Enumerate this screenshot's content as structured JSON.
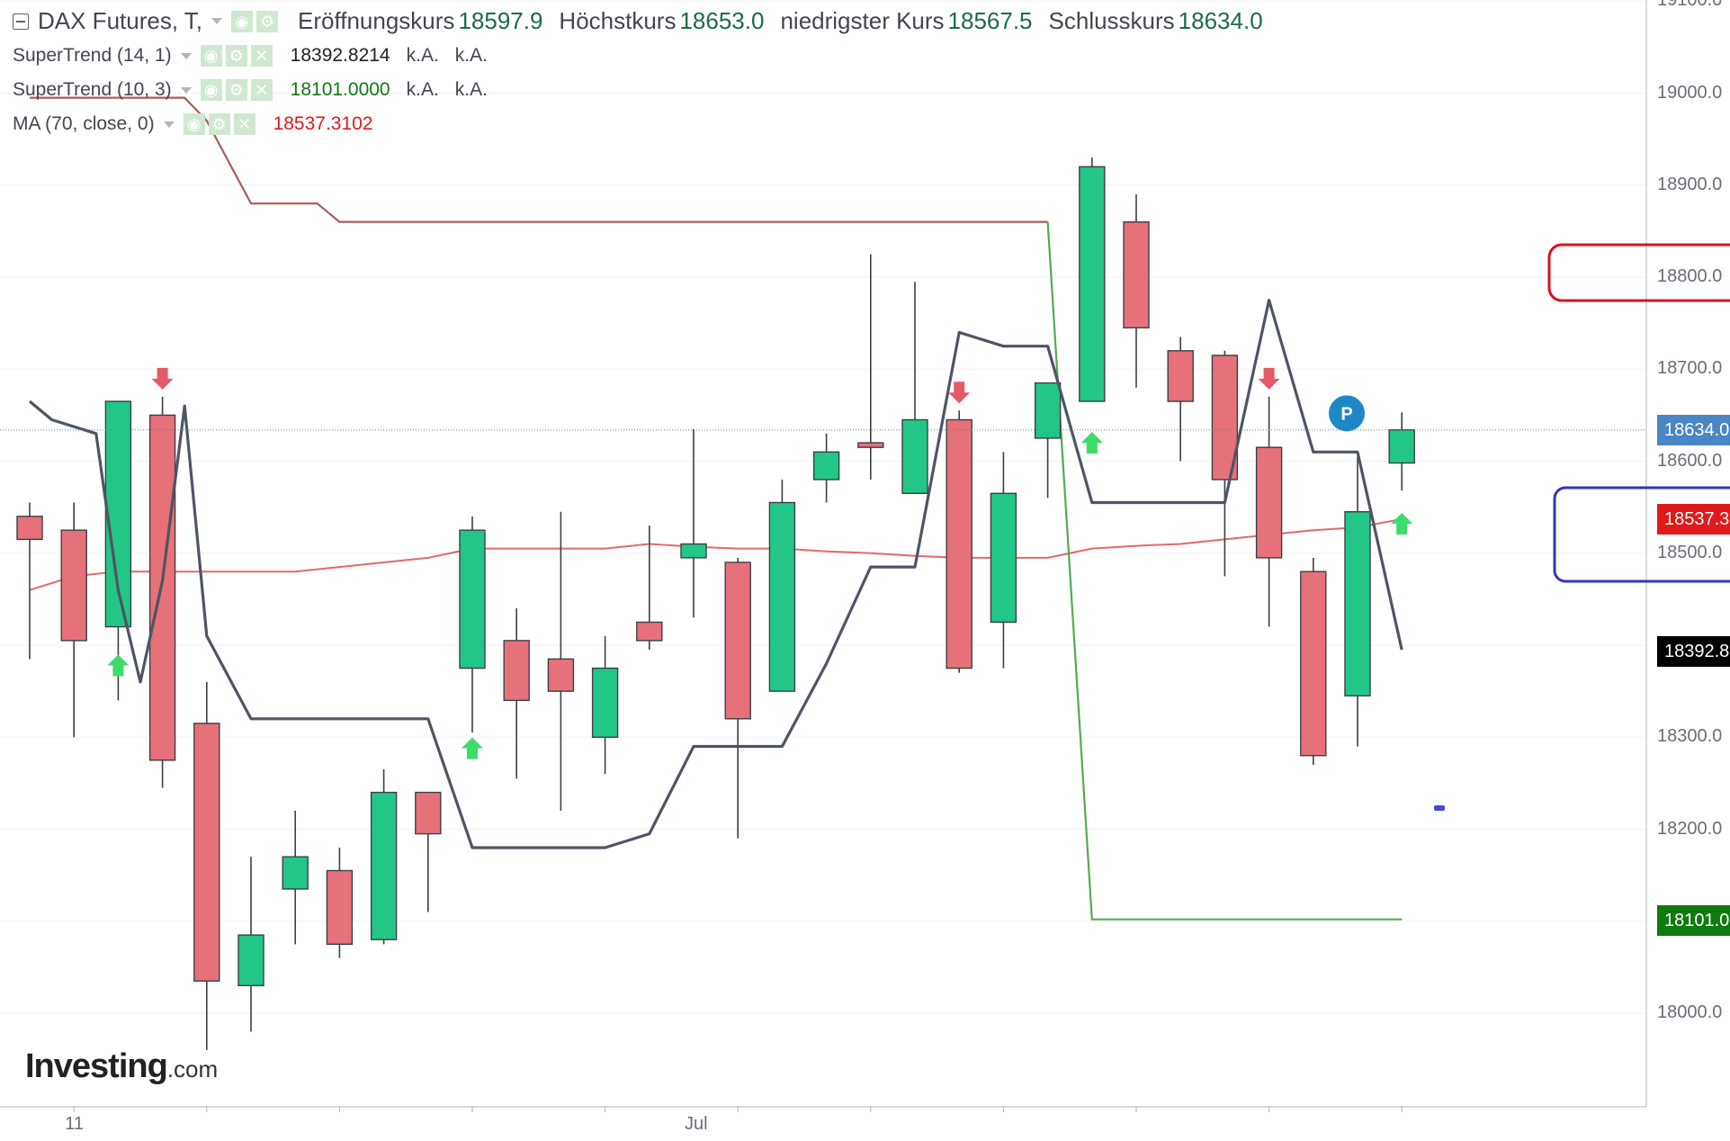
{
  "legend": {
    "main": {
      "symbol": "DAX Futures, T,",
      "open_label": "Eröffnungskurs",
      "open_value": "18597.9",
      "high_label": "Höchstkurs",
      "high_value": "18653.0",
      "low_label": "niedrigster Kurs",
      "low_value": "18567.5",
      "close_label": "Schlusskurs",
      "close_value": "18634.0"
    },
    "indicators": [
      {
        "name": "SuperTrend (14, 1)",
        "value": "18392.8214",
        "na1": "k.A.",
        "na2": "k.A."
      },
      {
        "name": "SuperTrend (10, 3)",
        "value": "18101.0000",
        "na1": "k.A.",
        "na2": "k.A."
      },
      {
        "name": "MA (70, close, 0)",
        "value": "18537.3102"
      }
    ]
  },
  "watermark": {
    "brand": "Investing",
    "suffix": ".com"
  },
  "price_tags": {
    "last": {
      "text": "18634.0",
      "color": "#4a86c5"
    },
    "ma": {
      "text": "18537.3",
      "color": "#e0191b"
    },
    "st1": {
      "text": "18392.8",
      "color": "#000000"
    },
    "st2": {
      "text": "18101.0",
      "color": "#117a11"
    }
  },
  "marker_p": "P",
  "colors": {
    "up": "#22c687",
    "down": "#e6717a",
    "st1_line": "#4e5563",
    "st2_line": "#57a857",
    "ma_line": "#e06a6a",
    "upper_line": "#a85b5b",
    "red_box": "#d81020",
    "blue_box": "#3535b8",
    "marker_p": "#1e88c7"
  },
  "chart_data": {
    "type": "candlestick",
    "ylim": [
      17900,
      19110
    ],
    "yticks": [
      18000,
      18100,
      18200,
      18300,
      18400,
      18500,
      18600,
      18700,
      18800,
      18900,
      19000,
      19100
    ],
    "ytick_labels": [
      "18000.0",
      "18100.0",
      "18200.0",
      "18300.0",
      "18400.0",
      "18500.0",
      "18600.0",
      "18700.0",
      "18800.0",
      "18900.0",
      "19000.0",
      "19100.0"
    ],
    "xtick_labels": [
      {
        "index": 1,
        "label": "11"
      },
      {
        "index": 15,
        "label": "Jul"
      }
    ],
    "ohlc": [
      [
        18540,
        18555,
        18385,
        18515
      ],
      [
        18525,
        18555,
        18300,
        18405
      ],
      [
        18420,
        18665,
        18340,
        18665
      ],
      [
        18650,
        18670,
        18245,
        18275
      ],
      [
        18315,
        18360,
        17960,
        18035
      ],
      [
        18030,
        18170,
        17980,
        18085
      ],
      [
        18135,
        18220,
        18075,
        18170
      ],
      [
        18155,
        18180,
        18060,
        18075
      ],
      [
        18080,
        18265,
        18075,
        18240
      ],
      [
        18240,
        18240,
        18110,
        18195
      ],
      [
        18375,
        18540,
        18305,
        18525
      ],
      [
        18405,
        18440,
        18255,
        18340
      ],
      [
        18385,
        18545,
        18220,
        18350
      ],
      [
        18300,
        18410,
        18260,
        18375
      ],
      [
        18425,
        18530,
        18395,
        18405
      ],
      [
        18495,
        18635,
        18430,
        18510
      ],
      [
        18490,
        18495,
        18190,
        18320
      ],
      [
        18350,
        18580,
        18350,
        18555
      ],
      [
        18580,
        18630,
        18555,
        18610
      ],
      [
        18620,
        18825,
        18580,
        18615
      ],
      [
        18565,
        18795,
        18565,
        18645
      ],
      [
        18645,
        18655,
        18370,
        18375
      ],
      [
        18425,
        18610,
        18375,
        18565
      ],
      [
        18625,
        18685,
        18560,
        18685
      ],
      [
        18665,
        18930,
        18665,
        18920
      ],
      [
        18860,
        18890,
        18680,
        18745
      ],
      [
        18720,
        18735,
        18600,
        18665
      ],
      [
        18715,
        18720,
        18475,
        18580
      ],
      [
        18615,
        18670,
        18420,
        18495
      ],
      [
        18480,
        18495,
        18270,
        18280
      ],
      [
        18345,
        18605,
        18290,
        18545
      ],
      [
        18598,
        18653,
        18568,
        18634
      ]
    ],
    "supertrend_14_1": [
      [
        0,
        18665
      ],
      [
        0.5,
        18645
      ],
      [
        1.5,
        18630
      ],
      [
        2,
        18460
      ],
      [
        2.5,
        18360
      ],
      [
        3,
        18470
      ],
      [
        3.5,
        18660
      ],
      [
        4,
        18410
      ],
      [
        5,
        18320
      ],
      [
        9,
        18320
      ],
      [
        10,
        18180
      ],
      [
        13,
        18180
      ],
      [
        14,
        18195
      ],
      [
        15,
        18290
      ],
      [
        17,
        18290
      ],
      [
        18,
        18380
      ],
      [
        19,
        18485
      ],
      [
        20,
        18485
      ],
      [
        21,
        18740
      ],
      [
        22,
        18725
      ],
      [
        23,
        18725
      ],
      [
        24,
        18555
      ],
      [
        27,
        18555
      ],
      [
        28,
        18775
      ],
      [
        29,
        18610
      ],
      [
        30,
        18610
      ],
      [
        31,
        18395
      ]
    ],
    "supertrend_10_3": [
      [
        23,
        18860
      ],
      [
        24,
        18102
      ],
      [
        31,
        18102
      ]
    ],
    "upper_line": [
      [
        0,
        18995
      ],
      [
        3.5,
        18995
      ],
      [
        4,
        18970
      ],
      [
        5,
        18880
      ],
      [
        6.5,
        18880
      ],
      [
        7,
        18860
      ],
      [
        23,
        18860
      ]
    ],
    "ma_70": [
      [
        0,
        18460
      ],
      [
        1,
        18475
      ],
      [
        2,
        18480
      ],
      [
        3,
        18480
      ],
      [
        4,
        18480
      ],
      [
        5,
        18480
      ],
      [
        6,
        18480
      ],
      [
        7,
        18485
      ],
      [
        8,
        18490
      ],
      [
        9,
        18495
      ],
      [
        10,
        18505
      ],
      [
        11,
        18505
      ],
      [
        12,
        18505
      ],
      [
        13,
        18505
      ],
      [
        14,
        18510
      ],
      [
        15,
        18507
      ],
      [
        16,
        18505
      ],
      [
        17,
        18505
      ],
      [
        18,
        18502
      ],
      [
        19,
        18500
      ],
      [
        20,
        18497
      ],
      [
        21,
        18495
      ],
      [
        22,
        18495
      ],
      [
        23,
        18495
      ],
      [
        24,
        18505
      ],
      [
        25,
        18508
      ],
      [
        26,
        18510
      ],
      [
        27,
        18515
      ],
      [
        28,
        18520
      ],
      [
        29,
        18525
      ],
      [
        30,
        18528
      ],
      [
        31,
        18537
      ]
    ],
    "arrows_down": [
      3,
      21,
      28
    ],
    "arrows_up": [
      {
        "index": 2,
        "y": 18378
      },
      {
        "index": 10,
        "y": 18288
      },
      {
        "index": 24,
        "y": 18620
      },
      {
        "index": 31,
        "y": 18532
      }
    ],
    "marker_p": {
      "index": 30,
      "y": 18652
    },
    "last_price": 18634.0,
    "extra_dot": {
      "index": 31.85,
      "y": 18223
    }
  }
}
